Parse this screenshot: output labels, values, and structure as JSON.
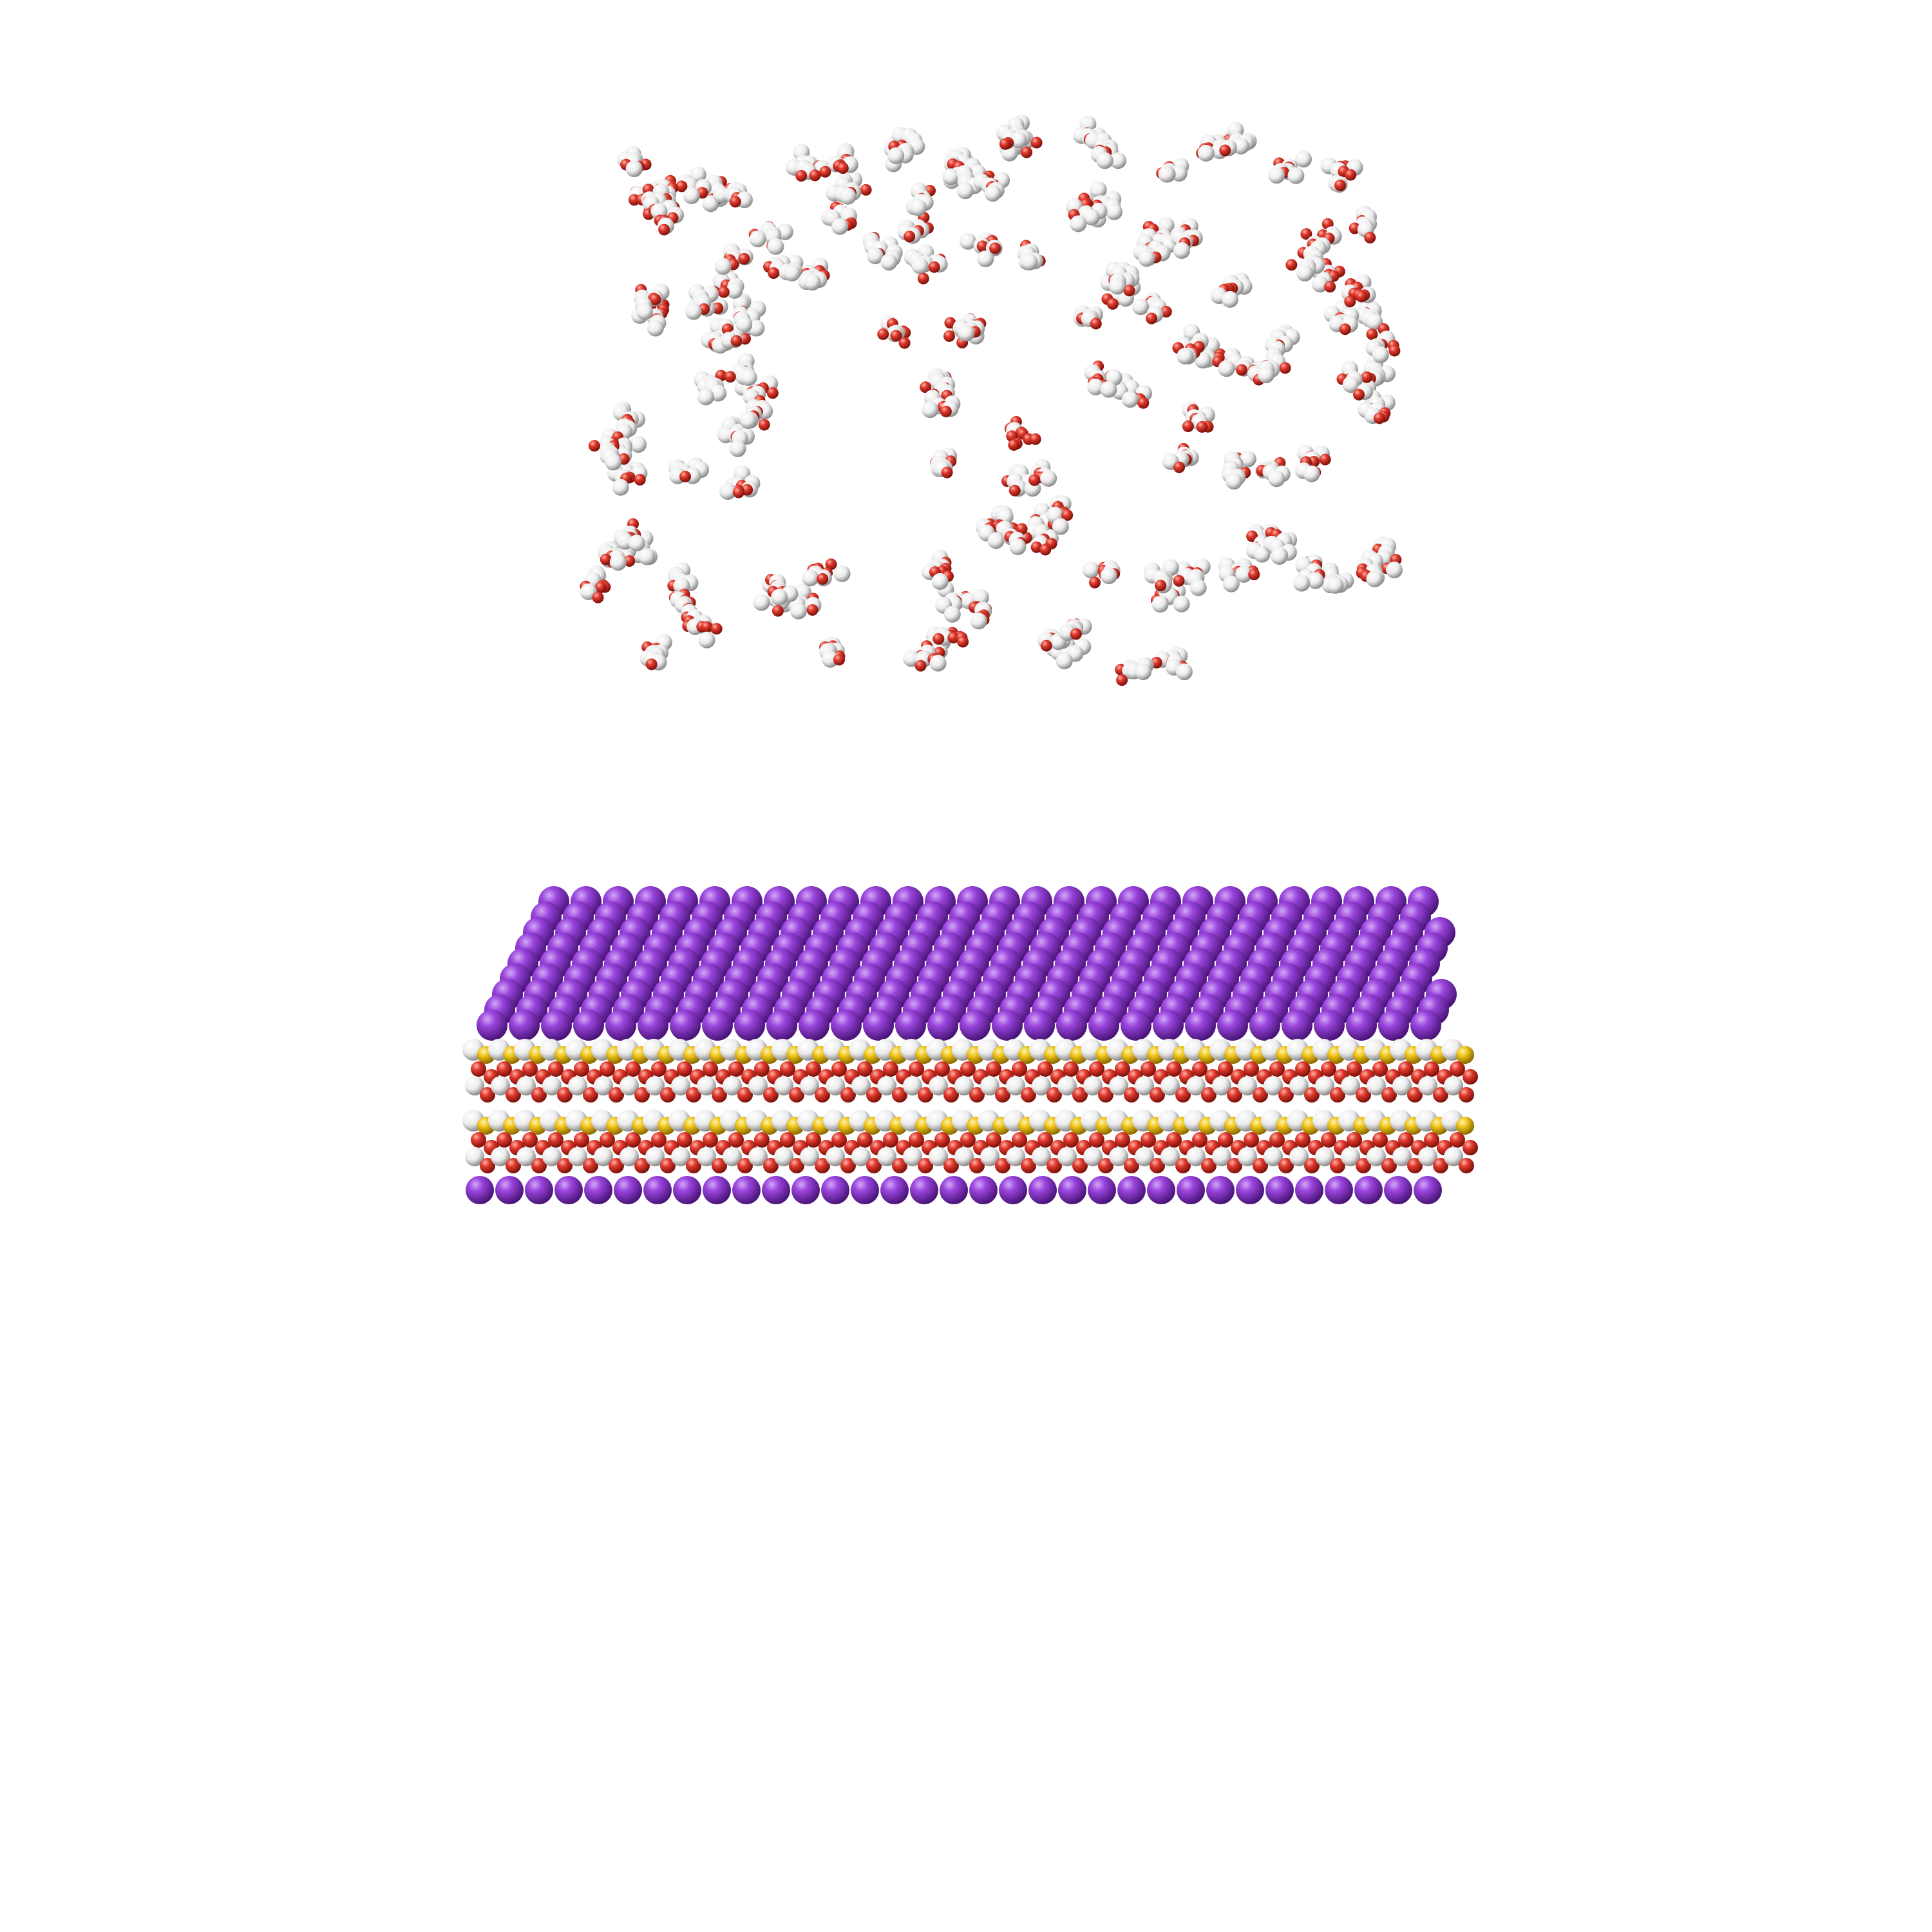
{
  "scene": {
    "background": "#ffffff",
    "solvent": {
      "molecule_count": 140,
      "atom_colors": {
        "oxygen": "#e0382c",
        "hydrogen": "#f2f2f2"
      }
    },
    "slab": {
      "layer_count": 2,
      "atom_colors": {
        "potassium": "#8a2fc8",
        "sulfur": "#f0c419",
        "oxygen": "#e0382c",
        "hydrogen": "#f5f5f5"
      }
    }
  }
}
